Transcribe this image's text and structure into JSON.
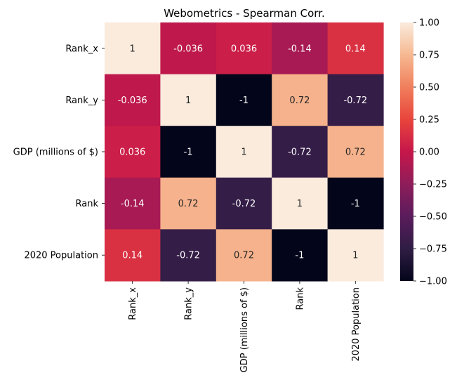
{
  "chart_data": {
    "type": "heatmap",
    "title": "Webometrics - Spearman Corr.",
    "xlabel": "",
    "ylabel": "",
    "row_labels": [
      "Rank_x",
      "Rank_y",
      "GDP (millions of $)",
      "Rank",
      "2020 Population"
    ],
    "col_labels": [
      "Rank_x",
      "Rank_y",
      "GDP (millions of $)",
      "Rank",
      "2020 Population"
    ],
    "values": [
      [
        1,
        -0.036,
        0.036,
        -0.14,
        0.14
      ],
      [
        -0.036,
        1,
        -1,
        0.72,
        -0.72
      ],
      [
        0.036,
        -1,
        1,
        -0.72,
        0.72
      ],
      [
        -0.14,
        0.72,
        -0.72,
        1,
        -1
      ],
      [
        0.14,
        -0.72,
        0.72,
        -1,
        1
      ]
    ],
    "cell_labels": [
      [
        "1",
        "-0.036",
        "0.036",
        "-0.14",
        "0.14"
      ],
      [
        "-0.036",
        "1",
        "-1",
        "0.72",
        "-0.72"
      ],
      [
        "0.036",
        "-1",
        "1",
        "-0.72",
        "0.72"
      ],
      [
        "-0.14",
        "0.72",
        "-0.72",
        "1",
        "-1"
      ],
      [
        "0.14",
        "-0.72",
        "0.72",
        "-1",
        "1"
      ]
    ],
    "colormap": "rocket",
    "vmin": -1.0,
    "vmax": 1.0,
    "colorbar_ticks": [
      1.0,
      0.75,
      0.5,
      0.25,
      0.0,
      -0.25,
      -0.5,
      -0.75,
      -1.0
    ],
    "colorbar_tick_labels": [
      "1.00",
      "0.75",
      "0.50",
      "0.25",
      "0.00",
      "−0.25",
      "−0.50",
      "−0.75",
      "−1.00"
    ],
    "grid": false
  }
}
